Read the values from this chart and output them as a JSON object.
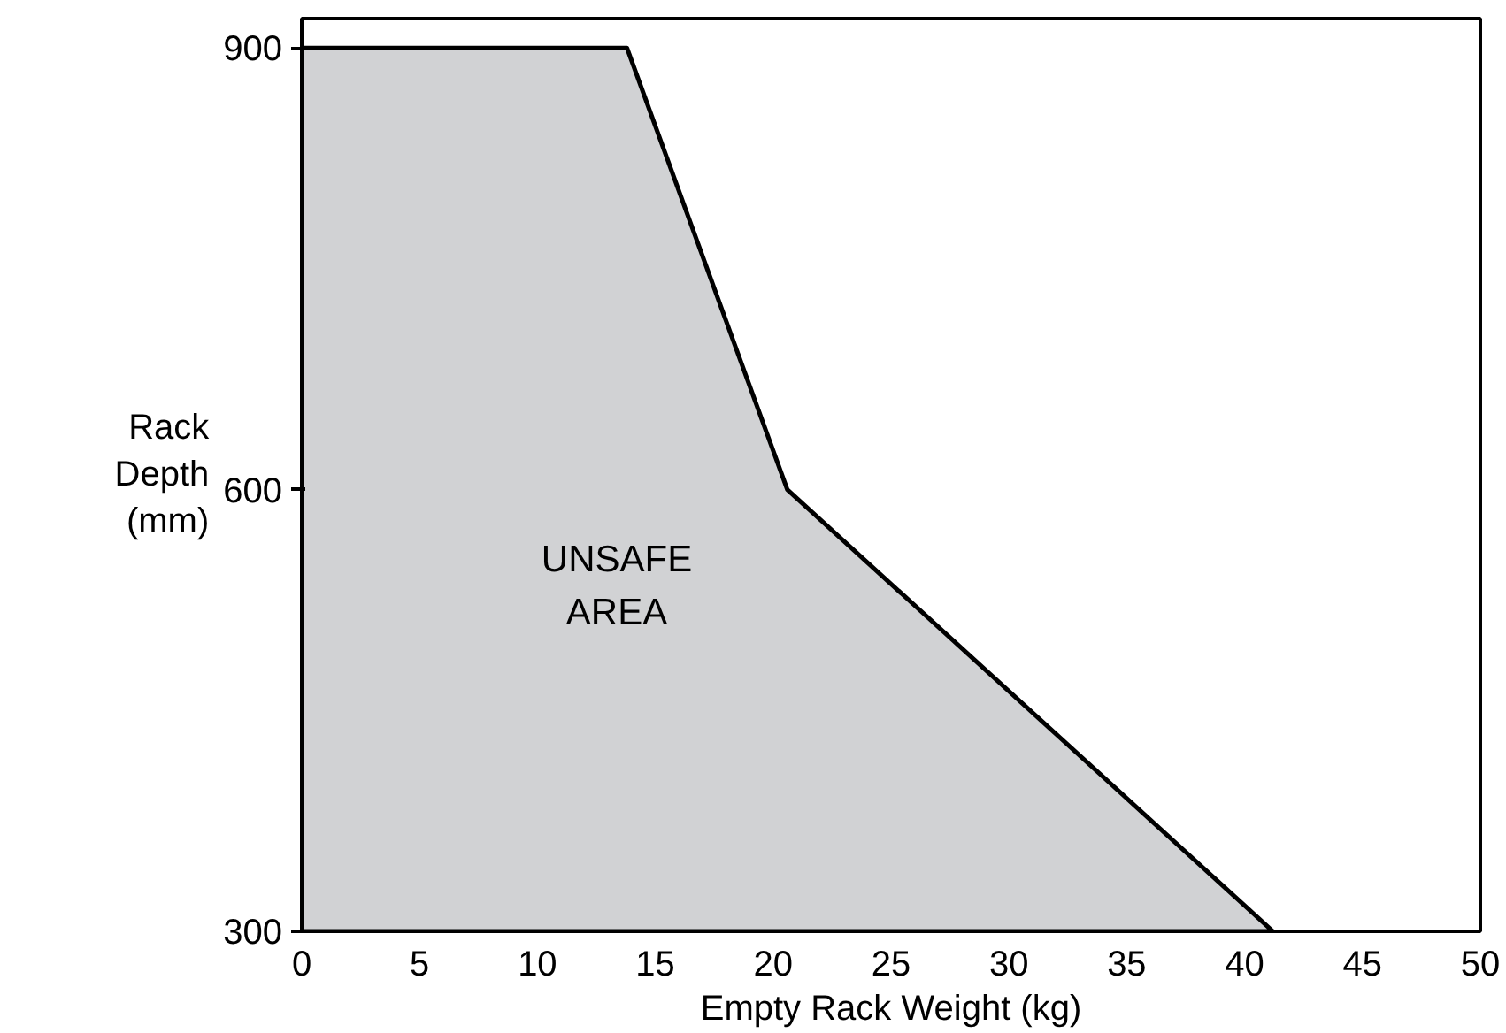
{
  "chart_data": {
    "type": "area",
    "xlabel": "Empty Rack Weight (kg)",
    "ylabel": "Rack Depth (mm)",
    "x": [
      0,
      13.8,
      20.6,
      41.2
    ],
    "series": [
      {
        "color": "#d1d2d4",
        "values": [
          900,
          900,
          600,
          300
        ]
      }
    ],
    "xlim": [
      0,
      50
    ],
    "ylim": [
      300,
      920
    ],
    "xticks": [
      0,
      5,
      10,
      15,
      20,
      25,
      30,
      35,
      40,
      45,
      50
    ],
    "yticks": [
      300,
      600,
      900
    ],
    "annotations": [
      "UNSAFE AREA"
    ],
    "grid": false
  }
}
